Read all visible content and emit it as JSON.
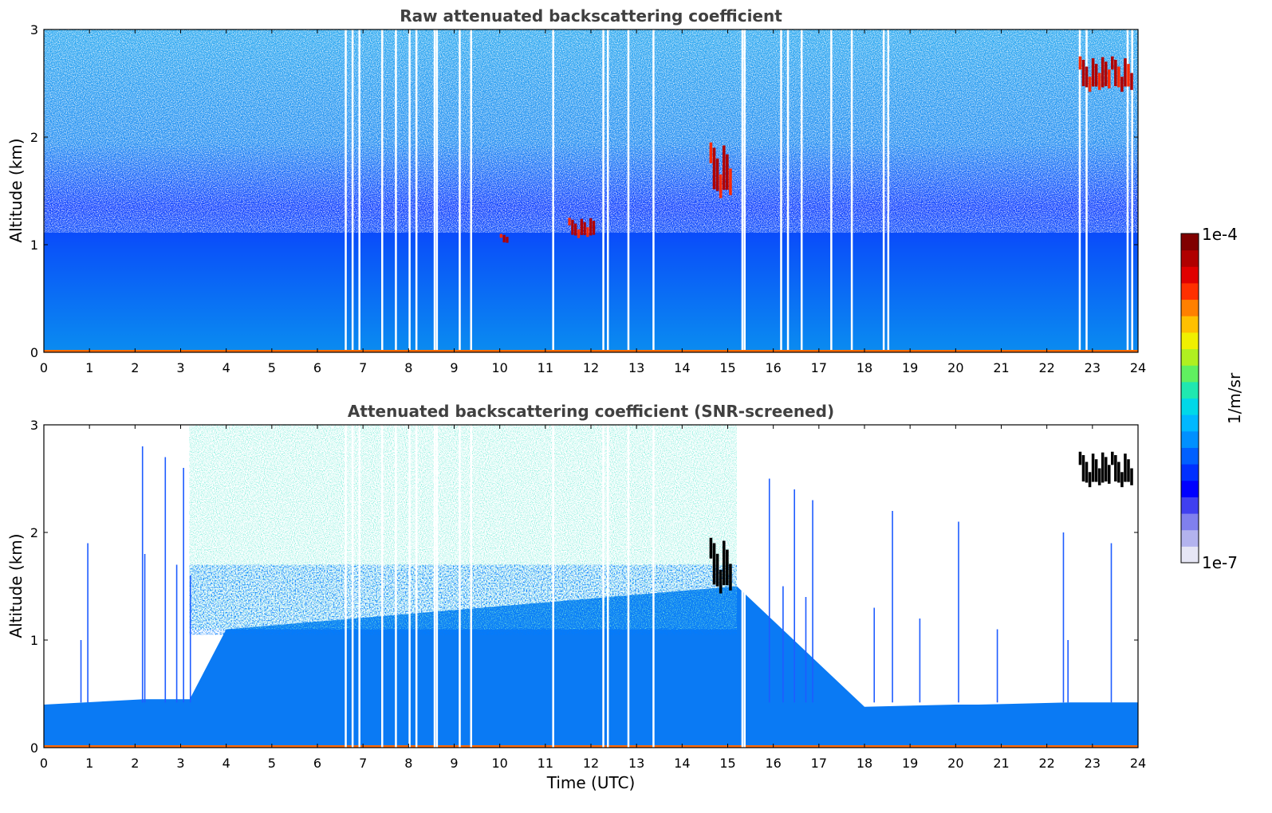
{
  "chart_data": [
    {
      "type": "heatmap",
      "title": "Raw attenuated backscattering coefficient",
      "xlabel": "",
      "ylabel": "Altitude (km)",
      "xlim": [
        0,
        24
      ],
      "ylim": [
        0,
        3
      ],
      "x_ticks": [
        "0",
        "1",
        "2",
        "3",
        "4",
        "5",
        "6",
        "7",
        "8",
        "9",
        "10",
        "11",
        "12",
        "13",
        "14",
        "15",
        "16",
        "17",
        "18",
        "19",
        "20",
        "21",
        "22",
        "23",
        "24"
      ],
      "y_ticks": [
        "0",
        "1",
        "2",
        "3"
      ],
      "boundary_layer_top_km": 1.1,
      "features": [
        {
          "name": "noise-gaps",
          "time_h": [
            6.6,
            6.75,
            6.9,
            7.4,
            7.7,
            8.0,
            8.15,
            8.55,
            8.6,
            9.1,
            9.35,
            11.15,
            12.25,
            12.35,
            12.8,
            13.35,
            15.3,
            15.35,
            16.15,
            16.3,
            16.6,
            17.25,
            17.7,
            18.4,
            18.5,
            22.7,
            22.85,
            23.75,
            23.85
          ]
        },
        {
          "name": "cloud-14.8h",
          "time_h": [
            14.6,
            15.1
          ],
          "alt_km": [
            1.4,
            1.95
          ],
          "value": "high"
        },
        {
          "name": "cloud-11.7h",
          "time_h": [
            11.5,
            12.1
          ],
          "alt_km": [
            1.05,
            1.25
          ],
          "value": "high"
        },
        {
          "name": "cloud-10.1h",
          "time_h": [
            10.0,
            10.2
          ],
          "alt_km": [
            1.0,
            1.1
          ],
          "value": "high"
        },
        {
          "name": "cloud-23h",
          "time_h": [
            22.7,
            23.9
          ],
          "alt_km": [
            2.4,
            2.75
          ],
          "value": "high"
        }
      ]
    },
    {
      "type": "heatmap",
      "title": "Attenuated backscattering coefficient (SNR-screened)",
      "xlabel": "Time (UTC)",
      "ylabel": "Altitude (km)",
      "xlim": [
        0,
        24
      ],
      "ylim": [
        0,
        3
      ],
      "x_ticks": [
        "0",
        "1",
        "2",
        "3",
        "4",
        "5",
        "6",
        "7",
        "8",
        "9",
        "10",
        "11",
        "12",
        "13",
        "14",
        "15",
        "16",
        "17",
        "18",
        "19",
        "20",
        "21",
        "22",
        "23",
        "24"
      ],
      "y_ticks": [
        "0",
        "1",
        "2",
        "3"
      ],
      "valid_top_profile": {
        "time_h": [
          0,
          2.2,
          3.2,
          4.0,
          15.2,
          18.0,
          20.0,
          20.5,
          22.5,
          24
        ],
        "alt_km": [
          0.4,
          0.45,
          0.45,
          1.1,
          1.5,
          0.38,
          0.4,
          0.4,
          0.42,
          0.42
        ]
      },
      "features": [
        {
          "name": "cloud-14.8h",
          "time_h": [
            14.6,
            15.1
          ],
          "alt_km": [
            1.4,
            1.95
          ],
          "value": "saturated"
        },
        {
          "name": "cloud-23h",
          "time_h": [
            22.7,
            23.9
          ],
          "alt_km": [
            2.4,
            2.75
          ],
          "value": "saturated"
        }
      ]
    }
  ],
  "colorbar": {
    "label": "1/m/sr",
    "max_label": "1e-4",
    "min_label": "1e-7",
    "scale": "log",
    "colors": [
      "#e6e6f5",
      "#b3b3ee",
      "#8080ee",
      "#4040f0",
      "#0000ff",
      "#0030ff",
      "#0060ff",
      "#0090ff",
      "#00b8ff",
      "#00d8e8",
      "#20e8b0",
      "#60f060",
      "#b0f020",
      "#f0f000",
      "#ffc000",
      "#ff8000",
      "#ff3000",
      "#e00000",
      "#b00000",
      "#800000"
    ]
  }
}
